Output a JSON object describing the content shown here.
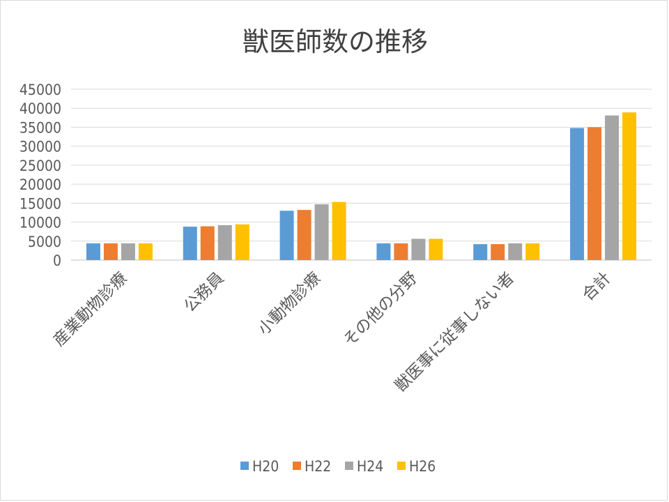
{
  "chart_data": {
    "type": "bar",
    "title": "獣医師数の推移",
    "categories": [
      "産業動物診療",
      "公務員",
      "小動物診療",
      "その他の分野",
      "獣医事に従事しない者",
      "合計"
    ],
    "series": [
      {
        "name": "H20",
        "color": "#5b9bd5",
        "values": [
          4400,
          8800,
          13000,
          4400,
          4200,
          34800
        ]
      },
      {
        "name": "H22",
        "color": "#ed7d31",
        "values": [
          4400,
          8900,
          13200,
          4400,
          4200,
          35000
        ]
      },
      {
        "name": "H24",
        "color": "#a5a5a5",
        "values": [
          4400,
          9200,
          14700,
          5600,
          4400,
          38100
        ]
      },
      {
        "name": "H26",
        "color": "#ffc000",
        "values": [
          4400,
          9400,
          15300,
          5600,
          4400,
          38900
        ]
      }
    ],
    "y_ticks": [
      "0",
      "5000",
      "10000",
      "15000",
      "20000",
      "25000",
      "30000",
      "35000",
      "40000",
      "45000"
    ],
    "ylim": [
      0,
      45000
    ],
    "grid": true,
    "legend": "bottom"
  }
}
